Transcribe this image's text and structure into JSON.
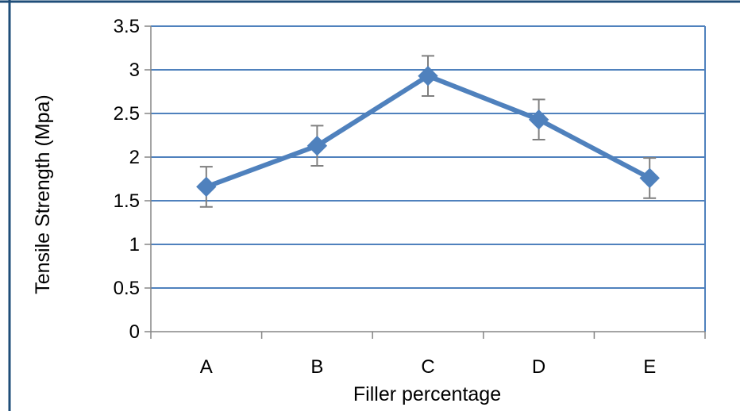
{
  "chart_data": {
    "type": "line",
    "title": "",
    "xlabel": "Filler percentage",
    "ylabel": "Tensile Strength  (Mpa)",
    "categories": [
      "A",
      "B",
      "C",
      "D",
      "E"
    ],
    "series": [
      {
        "values": [
          1.66,
          2.13,
          2.93,
          2.43,
          1.76
        ],
        "error": [
          0.23,
          0.23,
          0.23,
          0.23,
          0.23
        ]
      }
    ],
    "ylim": [
      0,
      3.5
    ],
    "yticks": [
      "0",
      "0.5",
      "1",
      "1.5",
      "2",
      "2.5",
      "3",
      "3.5"
    ],
    "grid": true,
    "legend": "none",
    "colors": {
      "line": "#4f81bd",
      "grid": "#4f81bd",
      "error_bar": "#7f7f7f",
      "axis": "#868686",
      "border": "#1f4e79"
    }
  }
}
